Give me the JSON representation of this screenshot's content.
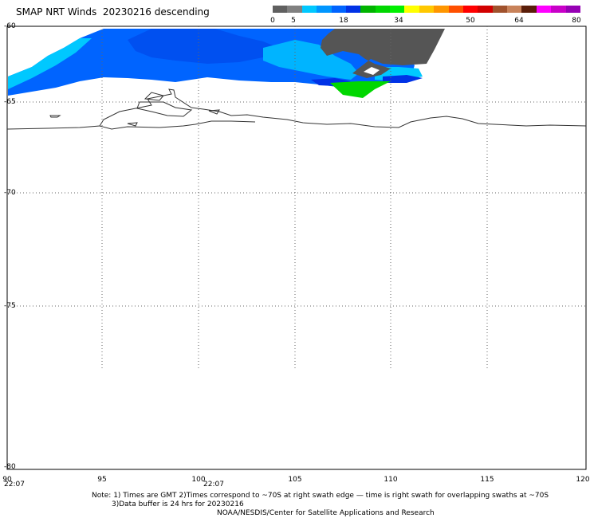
{
  "title": "SMAP NRT Winds  20230216 descending",
  "colorbar": {
    "ticks": [
      "0",
      "5",
      "18",
      "34",
      "50",
      "64",
      "80"
    ],
    "segments": [
      "#606060",
      "#808080",
      "#00c8ff",
      "#0096ff",
      "#0064ff",
      "#0032e6",
      "#00b400",
      "#00d700",
      "#00f000",
      "#ffff00",
      "#ffc800",
      "#ff9600",
      "#ff5000",
      "#ff0000",
      "#d20000",
      "#a0522d",
      "#c8825a",
      "#5a1e0a",
      "#ff00ff",
      "#c800c8",
      "#9600b4"
    ]
  },
  "map": {
    "lat_labels": [
      "-60",
      "-65",
      "-70",
      "-75",
      "-80"
    ],
    "lon_labels": [
      "90",
      "95",
      "100",
      "105",
      "110",
      "115",
      "120"
    ],
    "time_labels": [
      "22:07",
      "22:07"
    ]
  },
  "notes": {
    "line1": "Note: 1) Times are GMT 2)Times correspond to ~70S at right swath edge — time is right swath for overlapping swaths at ~70S",
    "line2": "3)Data buffer is 24 hrs for 20230216",
    "line3": "NOAA/NESDIS/Center for Satellite Applications and Research"
  }
}
